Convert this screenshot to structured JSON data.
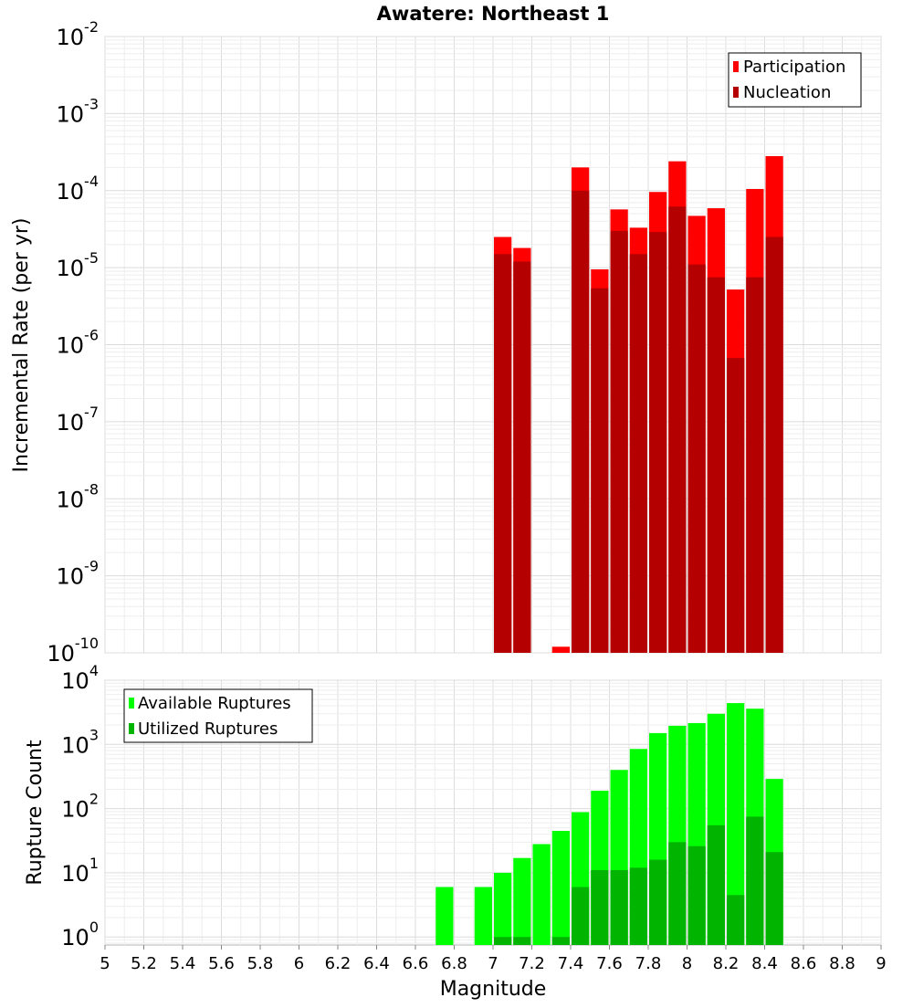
{
  "chart_data": [
    {
      "type": "bar",
      "title": "Awatere: Northeast 1",
      "ylabel": "Incremental Rate (per yr)",
      "xlabel": "Magnitude",
      "yscale": "log",
      "ylim": [
        1e-10,
        0.01
      ],
      "xlim": [
        5,
        9
      ],
      "ytick_exponents": [
        -10,
        -9,
        -8,
        -7,
        -6,
        -5,
        -4,
        -3,
        -2
      ],
      "grid": true,
      "legend_position": "top-right",
      "x": [
        7.05,
        7.15,
        7.35,
        7.45,
        7.55,
        7.65,
        7.75,
        7.85,
        7.95,
        8.05,
        8.15,
        8.25,
        8.35,
        8.45
      ],
      "series": [
        {
          "name": "Participation",
          "color": "#ff0000",
          "values": [
            2.5e-05,
            1.8e-05,
            1.2e-10,
            0.0002,
            9.5e-06,
            5.7e-05,
            3.3e-05,
            9.6e-05,
            0.00024,
            4.7e-05,
            5.9e-05,
            5.2e-06,
            0.000105,
            0.00028
          ]
        },
        {
          "name": "Nucleation",
          "color": "#b40000",
          "values": [
            1.5e-05,
            1.2e-05,
            null,
            0.0001,
            5.4e-06,
            3e-05,
            1.5e-05,
            2.9e-05,
            6.2e-05,
            1.1e-05,
            7.5e-06,
            6.7e-07,
            7.5e-06,
            2.5e-05
          ]
        }
      ]
    },
    {
      "type": "bar",
      "ylabel": "Rupture Count",
      "xlabel": "Magnitude",
      "yscale": "log",
      "ylim": [
        0.75,
        10000
      ],
      "xlim": [
        5,
        9
      ],
      "ytick_exponents": [
        0,
        1,
        2,
        3,
        4
      ],
      "xticks": [
        "5",
        "5.2",
        "5.4",
        "5.6",
        "5.8",
        "6",
        "6.2",
        "6.4",
        "6.6",
        "6.8",
        "7",
        "7.2",
        "7.4",
        "7.6",
        "7.8",
        "8",
        "8.2",
        "8.4",
        "8.6",
        "8.8",
        "9"
      ],
      "grid": true,
      "legend_position": "top-left",
      "x": [
        6.75,
        6.95,
        7.05,
        7.15,
        7.25,
        7.35,
        7.45,
        7.55,
        7.65,
        7.75,
        7.85,
        7.95,
        8.05,
        8.15,
        8.25,
        8.35,
        8.45
      ],
      "series": [
        {
          "name": "Available Ruptures",
          "color": "#00ff00",
          "values": [
            6,
            6,
            10,
            17,
            28,
            45,
            88,
            190,
            400,
            850,
            1500,
            1950,
            2150,
            3000,
            4400,
            3600,
            290
          ]
        },
        {
          "name": "Utilized Ruptures",
          "color": "#00b400",
          "values": [
            null,
            null,
            1,
            1,
            null,
            1,
            6,
            11,
            11,
            12,
            16,
            30,
            26,
            55,
            4.5,
            75,
            21
          ]
        }
      ]
    }
  ]
}
